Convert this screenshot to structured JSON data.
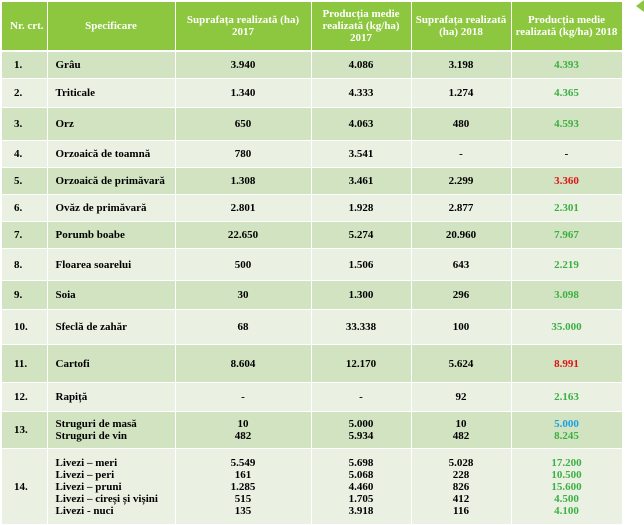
{
  "header": {
    "nr": "Nr. crt.",
    "spec": "Specificare",
    "area2017": "Suprafața realizată (ha) 2017",
    "prod2017": "Producția medie realizată (kg/ha) 2017",
    "area2018": "Suprafața realizată (ha) 2018",
    "prod2018": "Producția medie realizată (kg/ha) 2018"
  },
  "rows": [
    {
      "nr": "1.",
      "name": "Grâu",
      "a17": "3.940",
      "p17": "4.086",
      "a18": "3.198",
      "p18": "4.393"
    },
    {
      "nr": "2.",
      "name": "Triticale",
      "a17": "1.340",
      "p17": "4.333",
      "a18": "1.274",
      "p18": "4.365"
    },
    {
      "nr": "3.",
      "name": "Orz",
      "a17": "650",
      "p17": "4.063",
      "a18": "480",
      "p18": "4.593"
    },
    {
      "nr": "4.",
      "name": "Orzoaică de toamnă",
      "a17": "780",
      "p17": "3.541",
      "a18": "-",
      "p18": "-"
    },
    {
      "nr": "5.",
      "name": "Orzoaică de primăvară",
      "a17": "1.308",
      "p17": "3.461",
      "a18": "2.299",
      "p18": "3.360"
    },
    {
      "nr": "6.",
      "name": "Ovăz de primăvară",
      "a17": "2.801",
      "p17": "1.928",
      "a18": "2.877",
      "p18": "2.301"
    },
    {
      "nr": "7.",
      "name": "Porumb boabe",
      "a17": "22.650",
      "p17": "5.274",
      "a18": "20.960",
      "p18": "7.967"
    },
    {
      "nr": "8.",
      "name": "Floarea soarelui",
      "a17": "500",
      "p17": "1.506",
      "a18": "643",
      "p18": "2.219"
    },
    {
      "nr": "9.",
      "name": "Soia",
      "a17": "30",
      "p17": "1.300",
      "a18": "296",
      "p18": "3.098"
    },
    {
      "nr": "10.",
      "name": "Sfeclă de zahăr",
      "a17": "68",
      "p17": "33.338",
      "a18": "100",
      "p18": "35.000"
    },
    {
      "nr": "11.",
      "name": "Cartofi",
      "a17": "8.604",
      "p17": "12.170",
      "a18": "5.624",
      "p18": "8.991"
    },
    {
      "nr": "12.",
      "name": "Rapiță",
      "a17": "-",
      "p17": "-",
      "a18": "92",
      "p18": "2.163"
    }
  ],
  "row13": {
    "nr": "13.",
    "names": [
      "Struguri de masă",
      "Struguri de vin"
    ],
    "a17": [
      "10",
      "482"
    ],
    "p17": [
      "5.000",
      "5.934"
    ],
    "a18": [
      "10",
      "482"
    ],
    "p18": [
      "5.000",
      "8.245"
    ]
  },
  "row14": {
    "nr": "14.",
    "names": [
      "Livezi – meri",
      "Livezi – peri",
      "Livezi – pruni",
      "Livezi – cireși și vișini",
      "Livezi - nuci"
    ],
    "a17": [
      "5.549",
      "161",
      "1.285",
      "515",
      "135"
    ],
    "p17": [
      "5.698",
      "5.068",
      "4.460",
      "1.705",
      "3.918"
    ],
    "a18": [
      "5.028",
      "228",
      "826",
      "412",
      "116"
    ],
    "p18": [
      "17.200",
      "10.500",
      "15.600",
      "4.500",
      "4.100"
    ]
  },
  "colors": {
    "header_bg": "#8dc63f",
    "row_dark": "#d2e3c1",
    "row_light": "#eaf1e3",
    "value_green": "#3cb043",
    "value_red": "#e01414",
    "value_blue": "#1aa0e0"
  }
}
